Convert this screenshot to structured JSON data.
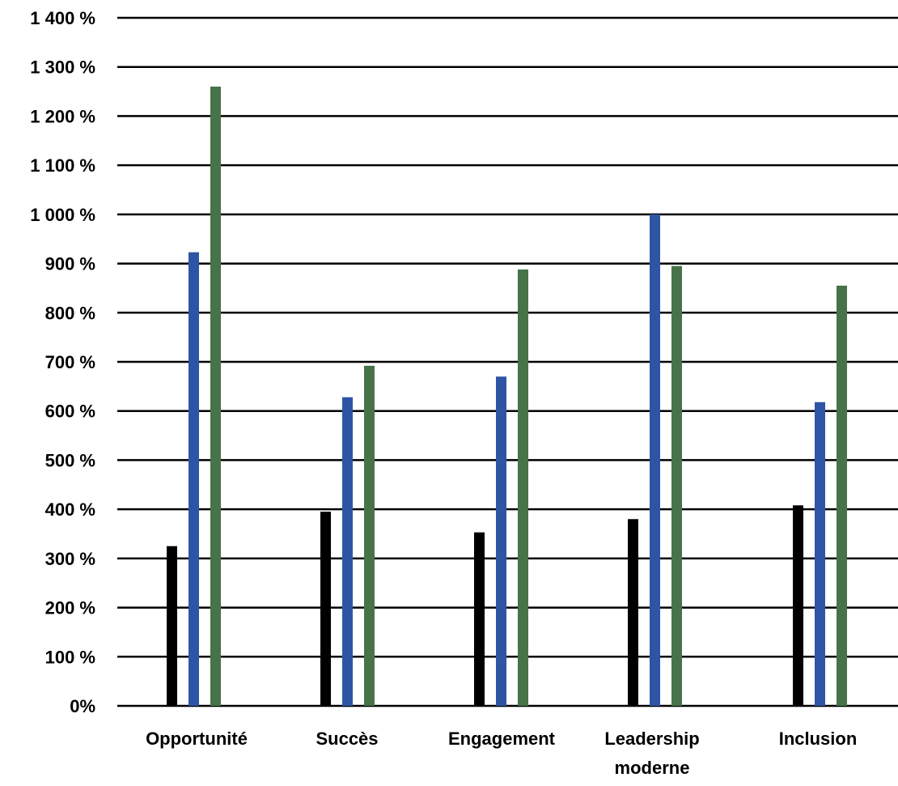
{
  "chart_data": {
    "type": "bar",
    "title": "",
    "xlabel": "",
    "ylabel": "",
    "ylim": [
      0,
      1400
    ],
    "y_ticks": [
      {
        "value": 0,
        "label": "0%"
      },
      {
        "value": 100,
        "label": "100 %"
      },
      {
        "value": 200,
        "label": "200 %"
      },
      {
        "value": 300,
        "label": "300 %"
      },
      {
        "value": 400,
        "label": "400 %"
      },
      {
        "value": 500,
        "label": "500 %"
      },
      {
        "value": 600,
        "label": "600 %"
      },
      {
        "value": 700,
        "label": "700 %"
      },
      {
        "value": 800,
        "label": "800 %"
      },
      {
        "value": 900,
        "label": "900 %"
      },
      {
        "value": 1000,
        "label": "1 000 %"
      },
      {
        "value": 1100,
        "label": "1 100 %"
      },
      {
        "value": 1200,
        "label": "1 200 %"
      },
      {
        "value": 1300,
        "label": "1 300 %"
      },
      {
        "value": 1400,
        "label": "1 400 %"
      }
    ],
    "grid": true,
    "legend": "none",
    "categories": [
      [
        "Opportunité"
      ],
      [
        "Succès"
      ],
      [
        "Engagement"
      ],
      [
        "Leadership",
        "moderne"
      ],
      [
        "Inclusion"
      ]
    ],
    "series": [
      {
        "color": "#000000",
        "values": [
          325,
          395,
          353,
          380,
          408
        ]
      },
      {
        "color": "#2e55a5",
        "values": [
          923,
          628,
          670,
          1000,
          618
        ]
      },
      {
        "color": "#46734a",
        "values": [
          1260,
          692,
          888,
          895,
          855
        ]
      }
    ]
  }
}
